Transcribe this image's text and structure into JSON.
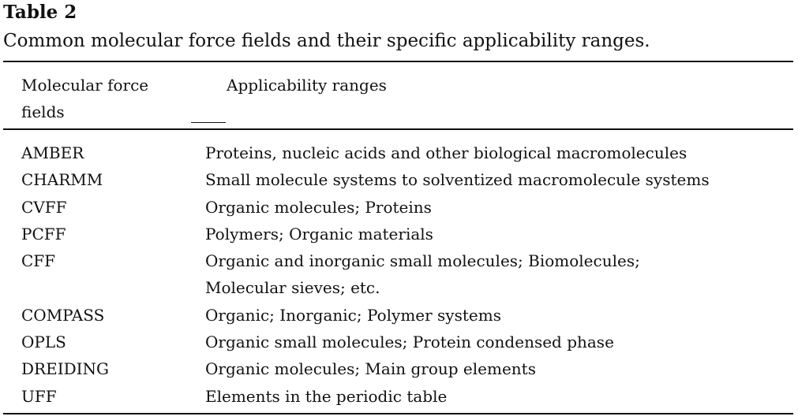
{
  "table": {
    "label": "Table 2",
    "caption": "Common molecular force fields and their specific applicability ranges.",
    "headers": {
      "col1": [
        "Molecular force",
        "fields"
      ],
      "col2": "Applicability ranges"
    },
    "rows": [
      {
        "name": "AMBER",
        "range": [
          "Proteins, nucleic acids and other biological macromolecules"
        ]
      },
      {
        "name": "CHARMM",
        "range": [
          "Small molecule systems to solventized macromolecule systems"
        ]
      },
      {
        "name": "CVFF",
        "range": [
          "Organic molecules; Proteins"
        ]
      },
      {
        "name": "PCFF",
        "range": [
          "Polymers; Organic materials"
        ]
      },
      {
        "name": "CFF",
        "range": [
          "Organic and inorganic small molecules; Biomolecules;",
          "Molecular sieves; etc."
        ]
      },
      {
        "name": "COMPASS",
        "range": [
          "Organic; Inorganic; Polymer systems"
        ]
      },
      {
        "name": "OPLS",
        "range": [
          "Organic small molecules; Protein condensed phase"
        ]
      },
      {
        "name": "DREIDING",
        "range": [
          "Organic molecules; Main group elements"
        ]
      },
      {
        "name": "UFF",
        "range": [
          "Elements in the periodic table"
        ]
      }
    ]
  }
}
